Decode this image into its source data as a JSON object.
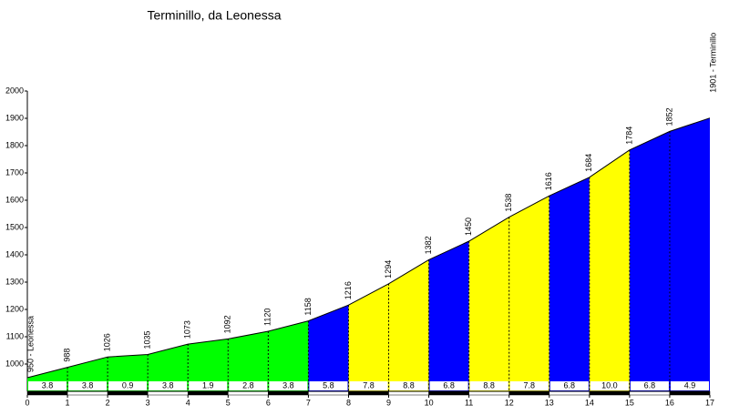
{
  "chart_data": {
    "type": "elevation-profile",
    "title": "Terminillo, da Leonessa",
    "x": [
      0,
      1,
      2,
      3,
      4,
      5,
      6,
      7,
      8,
      9,
      10,
      11,
      12,
      13,
      14,
      15,
      16,
      17
    ],
    "values": [
      950,
      988,
      1026,
      1035,
      1073,
      1092,
      1120,
      1158,
      1216,
      1294,
      1382,
      1450,
      1538,
      1616,
      1684,
      1784,
      1852,
      1901
    ],
    "value_labels": [
      "950 - Leonessa",
      null,
      null,
      null,
      null,
      null,
      null,
      null,
      null,
      null,
      null,
      null,
      null,
      null,
      null,
      null,
      null,
      "1901 - Terminillo"
    ],
    "grades": [
      3.8,
      3.8,
      0.9,
      3.8,
      1.9,
      2.8,
      3.8,
      5.8,
      7.8,
      8.8,
      6.8,
      8.8,
      7.8,
      6.8,
      10.0,
      6.8,
      4.9
    ],
    "grade_labels": [
      null,
      null,
      null,
      null,
      null,
      null,
      null,
      null,
      null,
      null,
      null,
      null,
      null,
      null,
      "10.0",
      null,
      null
    ],
    "segment_colors": [
      "#00ff00",
      "#00ff00",
      "#00ff00",
      "#00ff00",
      "#00ff00",
      "#00ff00",
      "#00ff00",
      "#0000ff",
      "#ffff00",
      "#ffff00",
      "#0000ff",
      "#ffff00",
      "#ffff00",
      "#0000ff",
      "#ffff00",
      "#0000ff",
      "#0000ff"
    ],
    "xlim": [
      0,
      17
    ],
    "xticks": [
      0,
      1,
      2,
      3,
      4,
      5,
      6,
      7,
      8,
      9,
      10,
      11,
      12,
      13,
      14,
      15,
      16,
      17
    ],
    "ylim": [
      900,
      2000
    ],
    "yticks": [
      1000,
      1100,
      1200,
      1300,
      1400,
      1500,
      1600,
      1700,
      1800,
      1900,
      2000
    ]
  }
}
